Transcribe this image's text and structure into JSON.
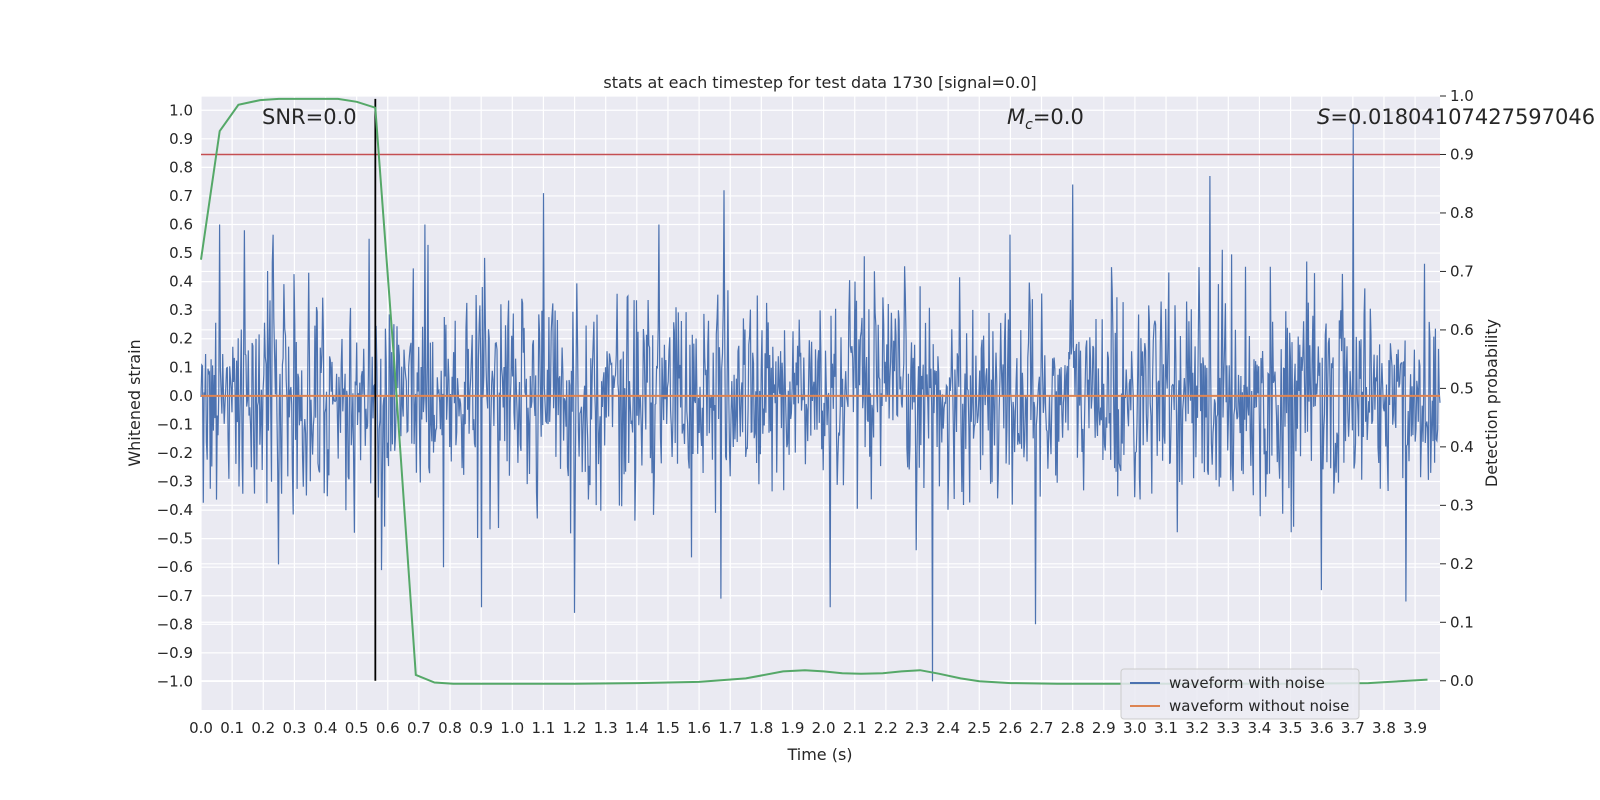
{
  "chart_data": {
    "type": "line",
    "title": "stats at each timestep for test data 1730 [signal=0.0]",
    "xlabel": "Time (s)",
    "ylabel": "Whitened strain",
    "y2label": "Detection probability",
    "xlim": [
      0.0,
      3.98
    ],
    "ylim": [
      -1.1,
      1.05
    ],
    "y2lim": [
      -0.05,
      1.0
    ],
    "grid": true,
    "x_ticks": [
      0.0,
      0.1,
      0.2,
      0.3,
      0.4,
      0.5,
      0.6,
      0.7,
      0.8,
      0.9,
      1.0,
      1.1,
      1.2,
      1.3,
      1.4,
      1.5,
      1.6,
      1.7,
      1.8,
      1.9,
      2.0,
      2.1,
      2.2,
      2.3,
      2.4,
      2.5,
      2.6,
      2.7,
      2.8,
      2.9,
      3.0,
      3.1,
      3.2,
      3.3,
      3.4,
      3.5,
      3.6,
      3.7,
      3.8,
      3.9
    ],
    "x_tick_labels": [
      "0.0",
      "0.1",
      "0.2",
      "0.3",
      "0.4",
      "0.5",
      "0.6",
      "0.7",
      "0.8",
      "0.9",
      "1.0",
      "1.1",
      "1.2",
      "1.3",
      "1.4",
      "1.5",
      "1.6",
      "1.7",
      "1.8",
      "1.9",
      "2.0",
      "2.1",
      "2.2",
      "2.3",
      "2.4",
      "2.5",
      "2.6",
      "2.7",
      "2.8",
      "2.9",
      "3.0",
      "3.1",
      "3.2",
      "3.3",
      "3.4",
      "3.5",
      "3.6",
      "3.7",
      "3.8",
      "3.9"
    ],
    "y_ticks": [
      1.0,
      0.9,
      0.8,
      0.7,
      0.6,
      0.5,
      0.4,
      0.3,
      0.2,
      0.1,
      0.0,
      -0.1,
      -0.2,
      -0.3,
      -0.4,
      -0.5,
      -0.6,
      -0.7,
      -0.8,
      -0.9,
      -1.0
    ],
    "y_tick_labels": [
      "1.0",
      "0.9",
      "0.8",
      "0.7",
      "0.6",
      "0.5",
      "0.4",
      "0.3",
      "0.2",
      "0.1",
      "0.0",
      "−0.1",
      "−0.2",
      "−0.3",
      "−0.4",
      "−0.5",
      "−0.6",
      "−0.7",
      "−0.8",
      "−0.9",
      "−1.0"
    ],
    "y2_ticks": [
      1.0,
      0.9,
      0.8,
      0.7,
      0.6,
      0.5,
      0.4,
      0.3,
      0.2,
      0.1,
      0.0
    ],
    "y2_tick_labels": [
      "1.0",
      "0.9",
      "0.8",
      "0.7",
      "0.6",
      "0.5",
      "0.4",
      "0.3",
      "0.2",
      "0.1",
      "0.0"
    ],
    "annotations": {
      "snr": "SNR=0.0",
      "mc_symbol": "M",
      "mc_sub": "c",
      "mc_value": "=0.0",
      "s_symbol": "S",
      "s_value": "=0.01804107427597046"
    },
    "threshold": 0.9,
    "marker_time": 0.56,
    "series": [
      {
        "name": "waveform with noise",
        "color": "#4c72b0",
        "axis": "left",
        "kind": "noise",
        "noise_sigma": 0.18,
        "spikes": [
          {
            "x": 0.06,
            "y": 0.6
          },
          {
            "x": 0.14,
            "y": 0.58
          },
          {
            "x": 0.25,
            "y": -0.59
          },
          {
            "x": 0.54,
            "y": 0.55
          },
          {
            "x": 0.58,
            "y": -0.61
          },
          {
            "x": 0.78,
            "y": -0.6
          },
          {
            "x": 0.9,
            "y": -0.74
          },
          {
            "x": 1.1,
            "y": 0.71
          },
          {
            "x": 1.2,
            "y": -0.76
          },
          {
            "x": 1.67,
            "y": -0.71
          },
          {
            "x": 1.68,
            "y": 0.72
          },
          {
            "x": 2.02,
            "y": -0.74
          },
          {
            "x": 2.35,
            "y": -1.0
          },
          {
            "x": 2.68,
            "y": -0.8
          },
          {
            "x": 2.8,
            "y": 0.74
          },
          {
            "x": 3.24,
            "y": 0.77
          },
          {
            "x": 3.6,
            "y": -0.68
          },
          {
            "x": 3.7,
            "y": 0.96
          },
          {
            "x": 3.87,
            "y": -0.72
          }
        ]
      },
      {
        "name": "waveform without noise",
        "color": "#dd8452",
        "axis": "left",
        "x": [
          0.0,
          3.98
        ],
        "y": [
          0.0,
          0.0
        ]
      },
      {
        "name": "detection probability",
        "color": "#55a868",
        "axis": "right",
        "x": [
          0.0,
          0.06,
          0.12,
          0.19,
          0.25,
          0.31,
          0.37,
          0.44,
          0.5,
          0.56,
          0.62,
          0.69,
          0.75,
          0.81,
          0.87,
          1.0,
          1.2,
          1.4,
          1.6,
          1.75,
          1.87,
          1.94,
          2.0,
          2.06,
          2.12,
          2.19,
          2.25,
          2.31,
          2.37,
          2.44,
          2.5,
          2.6,
          2.75,
          3.0,
          3.5,
          3.75,
          3.94
        ],
        "y": [
          0.72,
          0.94,
          0.985,
          0.993,
          0.995,
          0.995,
          0.995,
          0.995,
          0.99,
          0.98,
          0.55,
          0.01,
          -0.003,
          -0.005,
          -0.005,
          -0.005,
          -0.005,
          -0.004,
          -0.002,
          0.004,
          0.016,
          0.018,
          0.016,
          0.013,
          0.012,
          0.013,
          0.016,
          0.018,
          0.012,
          0.004,
          -0.001,
          -0.004,
          -0.005,
          -0.005,
          -0.005,
          -0.004,
          0.002
        ]
      }
    ],
    "legend": {
      "placement": "lower-right",
      "entries": [
        {
          "label": "waveform with noise",
          "color": "#4c72b0"
        },
        {
          "label": "waveform without noise",
          "color": "#dd8452"
        }
      ]
    }
  }
}
